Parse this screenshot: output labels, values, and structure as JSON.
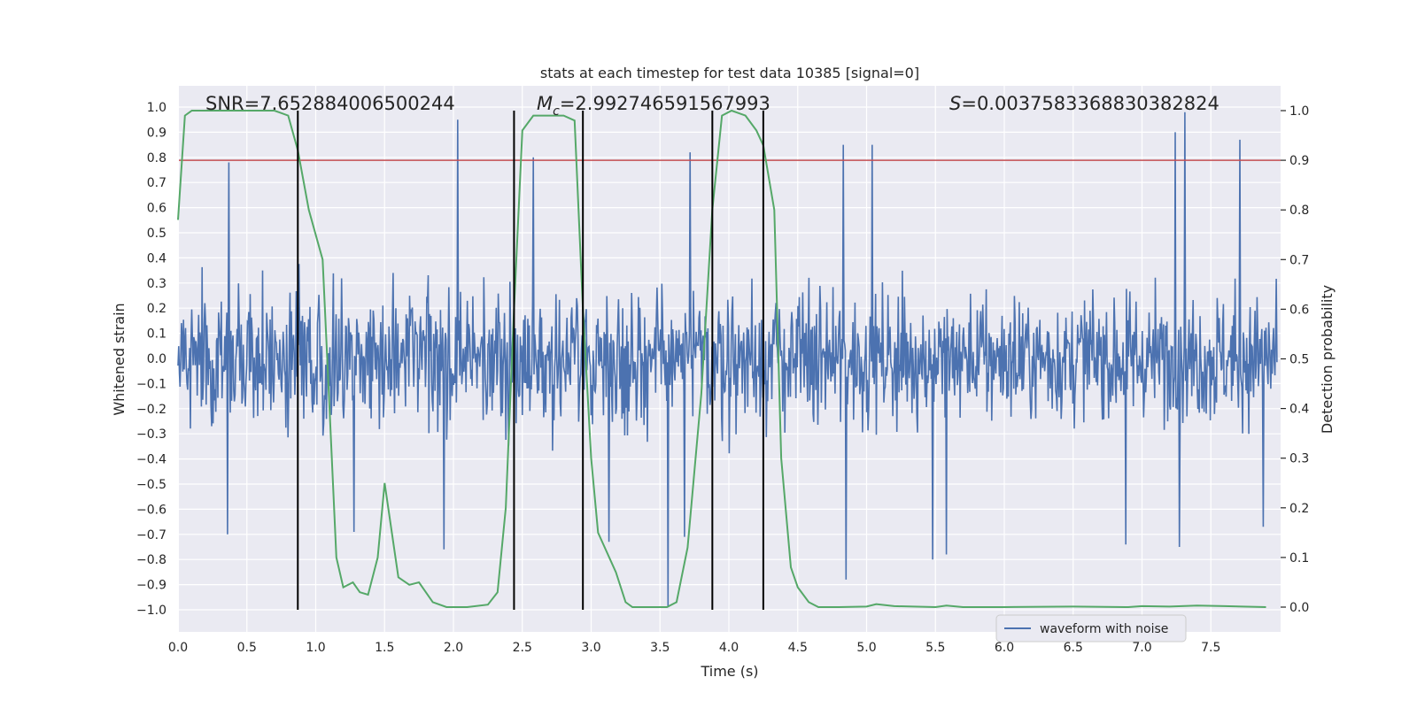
{
  "chart_data": {
    "type": "line",
    "title": "stats at each timestep for test data 10385 [signal=0]",
    "xlabel": "Time (s)",
    "ylabel_left": "Whitened strain",
    "ylabel_right": "Detection probability",
    "xlim": [
      0.0,
      8.0
    ],
    "ylim_left": [
      -1.09,
      1.09
    ],
    "ylim_right": [
      -0.05,
      1.04
    ],
    "x_ticks": [
      "0.0",
      "0.5",
      "1.0",
      "1.5",
      "2.0",
      "2.5",
      "3.0",
      "3.5",
      "4.0",
      "4.5",
      "5.0",
      "5.5",
      "6.0",
      "6.5",
      "7.0",
      "7.5"
    ],
    "y_left_ticks": [
      "1.0",
      "0.9",
      "0.8",
      "0.7",
      "0.6",
      "0.5",
      "0.4",
      "0.3",
      "0.2",
      "0.1",
      "0.0",
      "-0.1",
      "-0.2",
      "-0.3",
      "-0.4",
      "-0.5",
      "-0.6",
      "-0.7",
      "-0.8",
      "-0.9",
      "-1.0"
    ],
    "y_right_ticks": [
      "1.0",
      "0.9",
      "0.8",
      "0.7",
      "0.6",
      "0.5",
      "0.4",
      "0.3",
      "0.2",
      "0.1",
      "0.0"
    ],
    "annotations": {
      "snr": "SNR=7.652884006500244",
      "mc_symbol": "M",
      "mc_sub": "c",
      "mc_value": "=2.992746591567993",
      "s_symbol": "S",
      "s_value": "=0.0037583368830382824"
    },
    "threshold": {
      "value_right_axis": 0.9,
      "color": "#c44e52"
    },
    "vertical_markers": [
      0.87,
      2.44,
      2.94,
      3.88,
      4.25
    ],
    "marker_color": "#000000",
    "waveform": {
      "name": "waveform with noise",
      "color": "#4c72b0",
      "n_samples": 1600,
      "noise_sigma": 0.16,
      "spikes": [
        {
          "t": 2.03,
          "v": 0.95
        },
        {
          "t": 7.31,
          "v": 0.98
        },
        {
          "t": 7.24,
          "v": 0.9
        },
        {
          "t": 4.83,
          "v": 0.85
        },
        {
          "t": 5.04,
          "v": 0.85
        },
        {
          "t": 7.71,
          "v": 0.87
        },
        {
          "t": 2.58,
          "v": 0.8
        },
        {
          "t": 0.37,
          "v": 0.78
        },
        {
          "t": 3.72,
          "v": 0.82
        },
        {
          "t": 3.56,
          "v": -0.99
        },
        {
          "t": 4.85,
          "v": -0.88
        },
        {
          "t": 5.48,
          "v": -0.8
        },
        {
          "t": 5.58,
          "v": -0.78
        },
        {
          "t": 7.27,
          "v": -0.75
        },
        {
          "t": 6.88,
          "v": -0.74
        },
        {
          "t": 1.93,
          "v": -0.76
        },
        {
          "t": 1.28,
          "v": -0.69
        },
        {
          "t": 0.36,
          "v": -0.7
        },
        {
          "t": 3.13,
          "v": -0.73
        },
        {
          "t": 3.68,
          "v": -0.71
        },
        {
          "t": 7.88,
          "v": -0.67
        }
      ]
    },
    "probability": {
      "name": "detection probability",
      "color": "#55a868",
      "points": [
        [
          0.0,
          0.78
        ],
        [
          0.05,
          0.99
        ],
        [
          0.1,
          1.0
        ],
        [
          0.3,
          1.0
        ],
        [
          0.5,
          1.0
        ],
        [
          0.7,
          1.0
        ],
        [
          0.8,
          0.99
        ],
        [
          0.87,
          0.92
        ],
        [
          0.95,
          0.8
        ],
        [
          1.05,
          0.7
        ],
        [
          1.1,
          0.4
        ],
        [
          1.15,
          0.1
        ],
        [
          1.2,
          0.04
        ],
        [
          1.27,
          0.05
        ],
        [
          1.32,
          0.03
        ],
        [
          1.38,
          0.025
        ],
        [
          1.45,
          0.1
        ],
        [
          1.5,
          0.25
        ],
        [
          1.6,
          0.06
        ],
        [
          1.68,
          0.045
        ],
        [
          1.75,
          0.05
        ],
        [
          1.85,
          0.01
        ],
        [
          1.95,
          0.0
        ],
        [
          2.1,
          0.0
        ],
        [
          2.25,
          0.005
        ],
        [
          2.32,
          0.03
        ],
        [
          2.38,
          0.2
        ],
        [
          2.44,
          0.6
        ],
        [
          2.5,
          0.96
        ],
        [
          2.58,
          0.99
        ],
        [
          2.8,
          0.99
        ],
        [
          2.88,
          0.98
        ],
        [
          2.94,
          0.6
        ],
        [
          3.0,
          0.3
        ],
        [
          3.05,
          0.15
        ],
        [
          3.18,
          0.07
        ],
        [
          3.25,
          0.01
        ],
        [
          3.3,
          0.0
        ],
        [
          3.55,
          0.0
        ],
        [
          3.62,
          0.01
        ],
        [
          3.7,
          0.12
        ],
        [
          3.8,
          0.43
        ],
        [
          3.88,
          0.8
        ],
        [
          3.95,
          0.99
        ],
        [
          4.02,
          1.0
        ],
        [
          4.12,
          0.99
        ],
        [
          4.2,
          0.96
        ],
        [
          4.25,
          0.93
        ],
        [
          4.33,
          0.8
        ],
        [
          4.38,
          0.3
        ],
        [
          4.45,
          0.08
        ],
        [
          4.5,
          0.04
        ],
        [
          4.58,
          0.01
        ],
        [
          4.65,
          0.0
        ],
        [
          4.8,
          0.0
        ],
        [
          5.0,
          0.001
        ],
        [
          5.07,
          0.006
        ],
        [
          5.2,
          0.002
        ],
        [
          5.5,
          0.0
        ],
        [
          5.58,
          0.003
        ],
        [
          5.7,
          0.0
        ],
        [
          6.0,
          0.0
        ],
        [
          6.5,
          0.001
        ],
        [
          6.9,
          0.0
        ],
        [
          7.0,
          0.002
        ],
        [
          7.2,
          0.001
        ],
        [
          7.4,
          0.003
        ],
        [
          7.6,
          0.002
        ],
        [
          7.9,
          0.0
        ]
      ]
    },
    "legend": {
      "label": "waveform with noise",
      "position": "lower-right"
    }
  }
}
